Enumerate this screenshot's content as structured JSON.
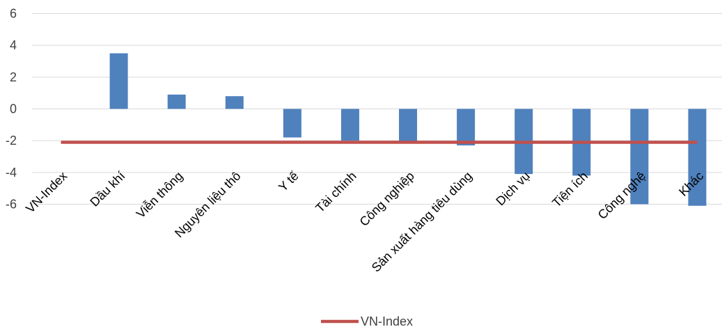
{
  "chart_data": {
    "type": "bar",
    "categories": [
      "VN-Index",
      "Dầu khí",
      "Viễn thông",
      "Nguyên liệu thô",
      "Y tế",
      "Tài chính",
      "Công nghiệp",
      "Sản xuất hàng tiêu dùng",
      "Dịch vụ",
      "Tiện ích",
      "Công nghệ",
      "Khác"
    ],
    "series": [
      {
        "kind": "bar",
        "color": "#4f81bd",
        "values": [
          null,
          3.5,
          0.9,
          0.8,
          -1.8,
          -2.0,
          -2.1,
          -2.3,
          -4.1,
          -4.2,
          -6.0,
          -6.1
        ]
      },
      {
        "kind": "line",
        "name": "VN-Index",
        "color": "#c0504d",
        "value": -2.1
      }
    ],
    "ylim": [
      -6,
      6
    ],
    "yticks": [
      6,
      4,
      2,
      0,
      -2,
      -4,
      -6
    ],
    "grid": true,
    "legend": "bottom-center"
  }
}
